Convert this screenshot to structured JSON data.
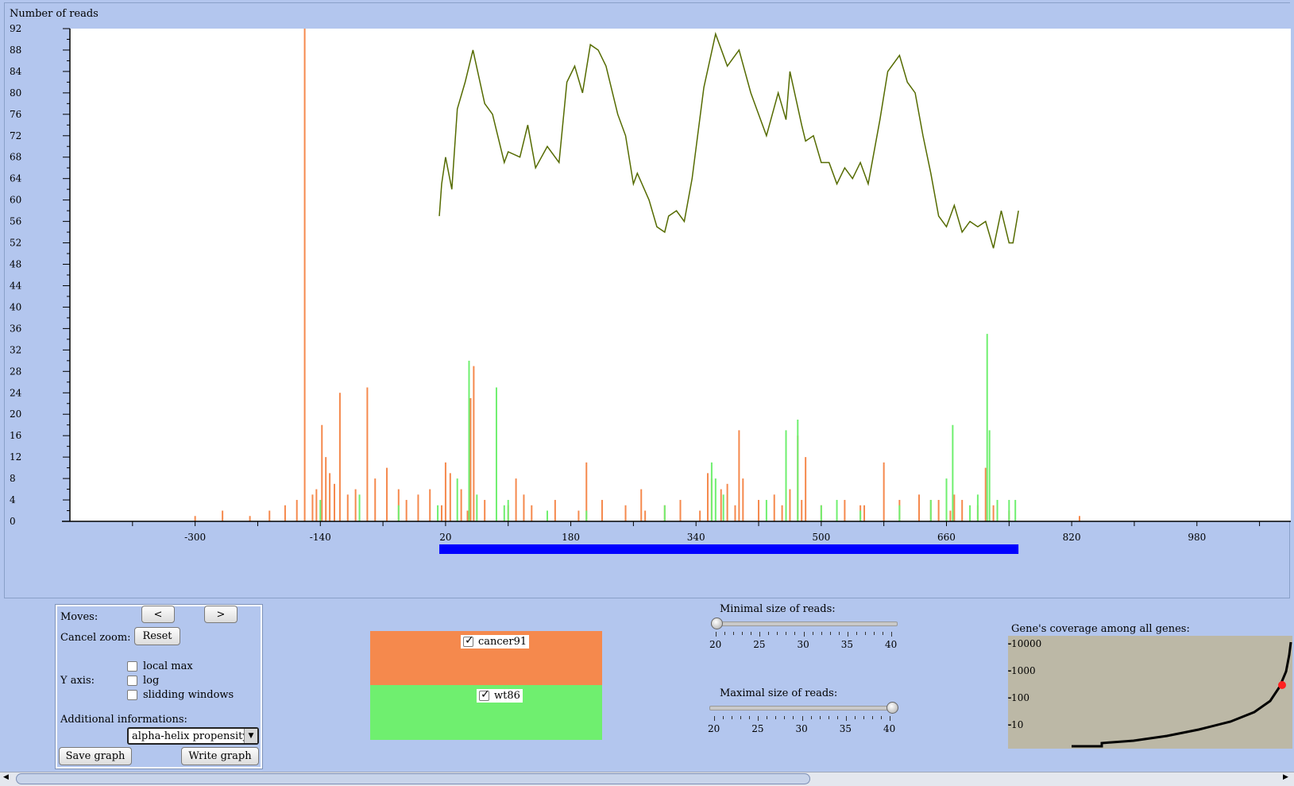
{
  "chart_data": {
    "type": "bar",
    "ylabel": "Number of reads",
    "y_ticks": [
      "92",
      "88",
      "84",
      "80",
      "76",
      "72",
      "68",
      "64",
      "60",
      "56",
      "52",
      "48",
      "44",
      "40",
      "36",
      "32",
      "28",
      "24",
      "20",
      "16",
      "12",
      "8",
      "4",
      "0"
    ],
    "x_ticks": [
      "-300",
      "-140",
      "20",
      "180",
      "340",
      "500",
      "660",
      "820",
      "980"
    ],
    "xlim": [
      -460,
      1100
    ],
    "ylim": [
      0,
      92
    ],
    "gene_span": [
      12,
      752
    ],
    "series": [
      {
        "name": "cancer91",
        "color": "#f5894d",
        "x": [
          -300,
          -265,
          -230,
          -205,
          -185,
          -170,
          -160,
          -150,
          -145,
          -138,
          -133,
          -128,
          -122,
          -115,
          -105,
          -95,
          -80,
          -70,
          -55,
          -40,
          -30,
          -15,
          0,
          15,
          20,
          26,
          40,
          48,
          52,
          56,
          70,
          100,
          110,
          120,
          130,
          160,
          190,
          200,
          220,
          250,
          270,
          275,
          300,
          320,
          345,
          355,
          360,
          372,
          380,
          390,
          395,
          400,
          420,
          440,
          450,
          460,
          470,
          475,
          480,
          500,
          530,
          550,
          555,
          580,
          600,
          625,
          640,
          650,
          660,
          665,
          670,
          680,
          700,
          710,
          720,
          740,
          830
        ],
        "y": [
          1,
          2,
          1,
          2,
          3,
          4,
          92,
          5,
          6,
          18,
          12,
          9,
          7,
          24,
          5,
          6,
          25,
          8,
          10,
          6,
          4,
          5,
          6,
          3,
          11,
          9,
          6,
          2,
          23,
          29,
          4,
          3,
          8,
          5,
          3,
          4,
          2,
          11,
          4,
          3,
          6,
          2,
          3,
          4,
          2,
          9,
          8,
          6,
          7,
          3,
          17,
          8,
          4,
          5,
          3,
          6,
          16,
          4,
          12,
          3,
          4,
          3,
          3,
          11,
          4,
          5,
          4,
          4,
          3,
          2,
          5,
          4,
          3,
          10,
          3,
          2,
          1
        ]
      },
      {
        "name": "wt86",
        "color": "#6fef6f",
        "x": [
          -140,
          -90,
          -40,
          10,
          35,
          50,
          60,
          85,
          95,
          100,
          150,
          200,
          300,
          360,
          365,
          375,
          430,
          455,
          470,
          500,
          520,
          550,
          600,
          640,
          660,
          668,
          690,
          700,
          712,
          715,
          725,
          740,
          748
        ],
        "y": [
          4,
          5,
          3,
          3,
          8,
          30,
          5,
          25,
          3,
          4,
          2,
          2,
          3,
          11,
          8,
          5,
          4,
          17,
          19,
          3,
          4,
          2,
          3,
          4,
          8,
          18,
          3,
          5,
          35,
          17,
          4,
          4,
          4
        ]
      }
    ],
    "overlay": {
      "name": "alpha-helix propensity",
      "color": "#556b00",
      "x": [
        12,
        15,
        20,
        28,
        35,
        45,
        55,
        70,
        80,
        95,
        100,
        115,
        125,
        135,
        150,
        165,
        175,
        185,
        195,
        205,
        215,
        225,
        240,
        250,
        260,
        265,
        280,
        290,
        300,
        305,
        315,
        325,
        335,
        350,
        365,
        380,
        395,
        410,
        420,
        430,
        445,
        455,
        460,
        475,
        480,
        490,
        500,
        510,
        520,
        530,
        540,
        550,
        560,
        575,
        585,
        600,
        610,
        620,
        630,
        640,
        650,
        660,
        665,
        670,
        680,
        690,
        700,
        710,
        720,
        730,
        740,
        745,
        752
      ],
      "y": [
        57,
        63,
        68,
        62,
        77,
        82,
        88,
        78,
        76,
        67,
        69,
        68,
        74,
        66,
        70,
        67,
        82,
        85,
        80,
        89,
        88,
        85,
        76,
        72,
        63,
        65,
        60,
        55,
        54,
        57,
        58,
        56,
        64,
        81,
        91,
        85,
        88,
        80,
        76,
        72,
        80,
        75,
        84,
        74,
        71,
        72,
        67,
        67,
        63,
        66,
        64,
        67,
        63,
        75,
        84,
        87,
        82,
        80,
        72,
        65,
        57,
        55,
        57,
        59,
        54,
        56,
        55,
        56,
        51,
        58,
        52,
        52,
        58
      ]
    }
  },
  "controls": {
    "moves_label": "Moves:",
    "prev_button": "<",
    "next_button": ">",
    "cancel_zoom_label": "Cancel zoom:",
    "reset_button": "Reset",
    "y_axis_label": "Y axis:",
    "opt_local_max": "local max",
    "opt_log": "log",
    "opt_sliding": "slidding windows",
    "additional_label": "Additional informations:",
    "additional_value": "alpha-helix propensity",
    "save_button": "Save graph",
    "write_button": "Write graph"
  },
  "legend": [
    {
      "label": "cancer91",
      "color": "#f5894d",
      "checked": true
    },
    {
      "label": "wt86",
      "color": "#6fef6f",
      "checked": true
    }
  ],
  "sliders": {
    "min_label": "Minimal size of reads:",
    "max_label": "Maximal size of reads:",
    "ticks": [
      "20",
      "25",
      "30",
      "35",
      "40"
    ],
    "min_value": 20,
    "max_value": 40
  },
  "coverage": {
    "label": "Gene's coverage among all genes:",
    "ticks": [
      "-10000",
      "-1000",
      "-100",
      "-10"
    ],
    "bg": "#bcb8a6"
  }
}
